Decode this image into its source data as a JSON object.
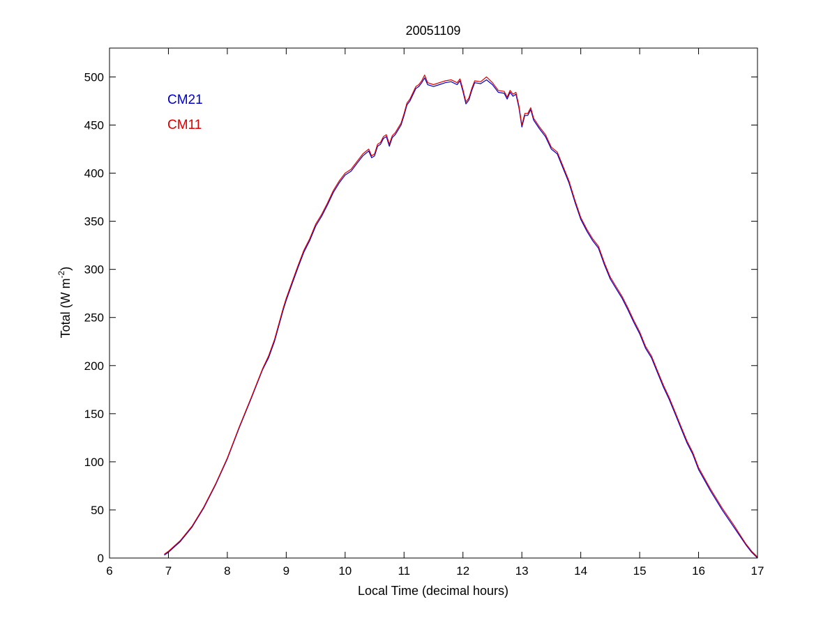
{
  "chart_data": {
    "type": "line",
    "title": "20051109",
    "xlabel": "Local Time (decimal hours)",
    "ylabel_main": "Total (W m",
    "ylabel_sup": "-2",
    "ylabel_close": ")",
    "xlim": [
      6,
      17
    ],
    "ylim": [
      0,
      530
    ],
    "xticks": [
      6,
      7,
      8,
      9,
      10,
      11,
      12,
      13,
      14,
      15,
      16,
      17
    ],
    "yticks": [
      0,
      50,
      100,
      150,
      200,
      250,
      300,
      350,
      400,
      450,
      500
    ],
    "grid": false,
    "legend_position": "top-left",
    "series": [
      {
        "name": "CM21",
        "color": "#0000cc",
        "x": [
          6.93,
          7.0,
          7.2,
          7.4,
          7.6,
          7.8,
          8.0,
          8.2,
          8.4,
          8.6,
          8.7,
          8.8,
          8.95,
          9.0,
          9.1,
          9.2,
          9.3,
          9.4,
          9.5,
          9.6,
          9.7,
          9.8,
          9.9,
          10.0,
          10.1,
          10.2,
          10.3,
          10.4,
          10.45,
          10.5,
          10.55,
          10.6,
          10.65,
          10.7,
          10.75,
          10.8,
          10.85,
          10.9,
          10.95,
          11.0,
          11.05,
          11.1,
          11.2,
          11.25,
          11.3,
          11.35,
          11.4,
          11.5,
          11.6,
          11.7,
          11.8,
          11.9,
          11.95,
          12.0,
          12.05,
          12.1,
          12.15,
          12.2,
          12.3,
          12.4,
          12.5,
          12.6,
          12.7,
          12.75,
          12.8,
          12.85,
          12.9,
          12.95,
          13.0,
          13.05,
          13.1,
          13.15,
          13.2,
          13.3,
          13.4,
          13.5,
          13.6,
          13.7,
          13.8,
          13.9,
          14.0,
          14.1,
          14.2,
          14.3,
          14.4,
          14.5,
          14.6,
          14.7,
          14.8,
          14.9,
          15.0,
          15.1,
          15.2,
          15.3,
          15.4,
          15.5,
          15.6,
          15.7,
          15.8,
          15.9,
          16.0,
          16.2,
          16.4,
          16.6,
          16.8,
          16.9,
          17.0
        ],
        "y": [
          3,
          6,
          17,
          32,
          52,
          76,
          103,
          135,
          165,
          196,
          208,
          225,
          258,
          268,
          285,
          302,
          318,
          330,
          345,
          355,
          367,
          380,
          390,
          398,
          402,
          410,
          418,
          423,
          416,
          418,
          428,
          430,
          436,
          438,
          428,
          437,
          440,
          445,
          450,
          460,
          471,
          475,
          488,
          490,
          494,
          499,
          492,
          490,
          492,
          494,
          495,
          492,
          496,
          485,
          472,
          476,
          486,
          494,
          493,
          497,
          492,
          484,
          483,
          477,
          484,
          480,
          482,
          468,
          448,
          460,
          460,
          466,
          455,
          446,
          438,
          425,
          420,
          405,
          390,
          370,
          352,
          340,
          330,
          322,
          305,
          290,
          280,
          270,
          258,
          245,
          233,
          218,
          208,
          193,
          178,
          165,
          150,
          135,
          120,
          108,
          92,
          70,
          50,
          32,
          14,
          6,
          0
        ]
      },
      {
        "name": "CM11",
        "color": "#dd0000",
        "x": [
          6.93,
          7.0,
          7.2,
          7.4,
          7.6,
          7.8,
          8.0,
          8.2,
          8.4,
          8.6,
          8.7,
          8.8,
          8.95,
          9.0,
          9.1,
          9.2,
          9.3,
          9.4,
          9.5,
          9.6,
          9.7,
          9.8,
          9.9,
          10.0,
          10.1,
          10.2,
          10.3,
          10.4,
          10.45,
          10.5,
          10.55,
          10.6,
          10.65,
          10.7,
          10.75,
          10.8,
          10.85,
          10.9,
          10.95,
          11.0,
          11.05,
          11.1,
          11.2,
          11.25,
          11.3,
          11.35,
          11.4,
          11.5,
          11.6,
          11.7,
          11.8,
          11.9,
          11.95,
          12.0,
          12.05,
          12.1,
          12.15,
          12.2,
          12.3,
          12.4,
          12.5,
          12.6,
          12.7,
          12.75,
          12.8,
          12.85,
          12.9,
          12.95,
          13.0,
          13.05,
          13.1,
          13.15,
          13.2,
          13.3,
          13.4,
          13.5,
          13.6,
          13.7,
          13.8,
          13.9,
          14.0,
          14.1,
          14.2,
          14.3,
          14.4,
          14.5,
          14.6,
          14.7,
          14.8,
          14.9,
          15.0,
          15.1,
          15.2,
          15.3,
          15.4,
          15.5,
          15.6,
          15.7,
          15.8,
          15.9,
          16.0,
          16.2,
          16.4,
          16.6,
          16.8,
          16.9,
          17.0
        ],
        "y": [
          4,
          7,
          18,
          33,
          53,
          77,
          104,
          136,
          166,
          197,
          210,
          227,
          260,
          270,
          287,
          304,
          320,
          332,
          347,
          357,
          369,
          382,
          392,
          400,
          404,
          412,
          420,
          425,
          418,
          420,
          430,
          432,
          438,
          440,
          430,
          439,
          442,
          447,
          452,
          462,
          473,
          477,
          490,
          492,
          496,
          502,
          494,
          492,
          494,
          496,
          497,
          494,
          498,
          487,
          474,
          478,
          488,
          496,
          495,
          500,
          494,
          486,
          485,
          479,
          486,
          482,
          484,
          470,
          450,
          462,
          462,
          468,
          457,
          448,
          440,
          427,
          422,
          407,
          392,
          372,
          354,
          342,
          332,
          324,
          307,
          292,
          282,
          272,
          260,
          247,
          235,
          220,
          210,
          195,
          180,
          167,
          152,
          137,
          122,
          110,
          94,
          72,
          52,
          34,
          15,
          7,
          1
        ]
      }
    ]
  }
}
